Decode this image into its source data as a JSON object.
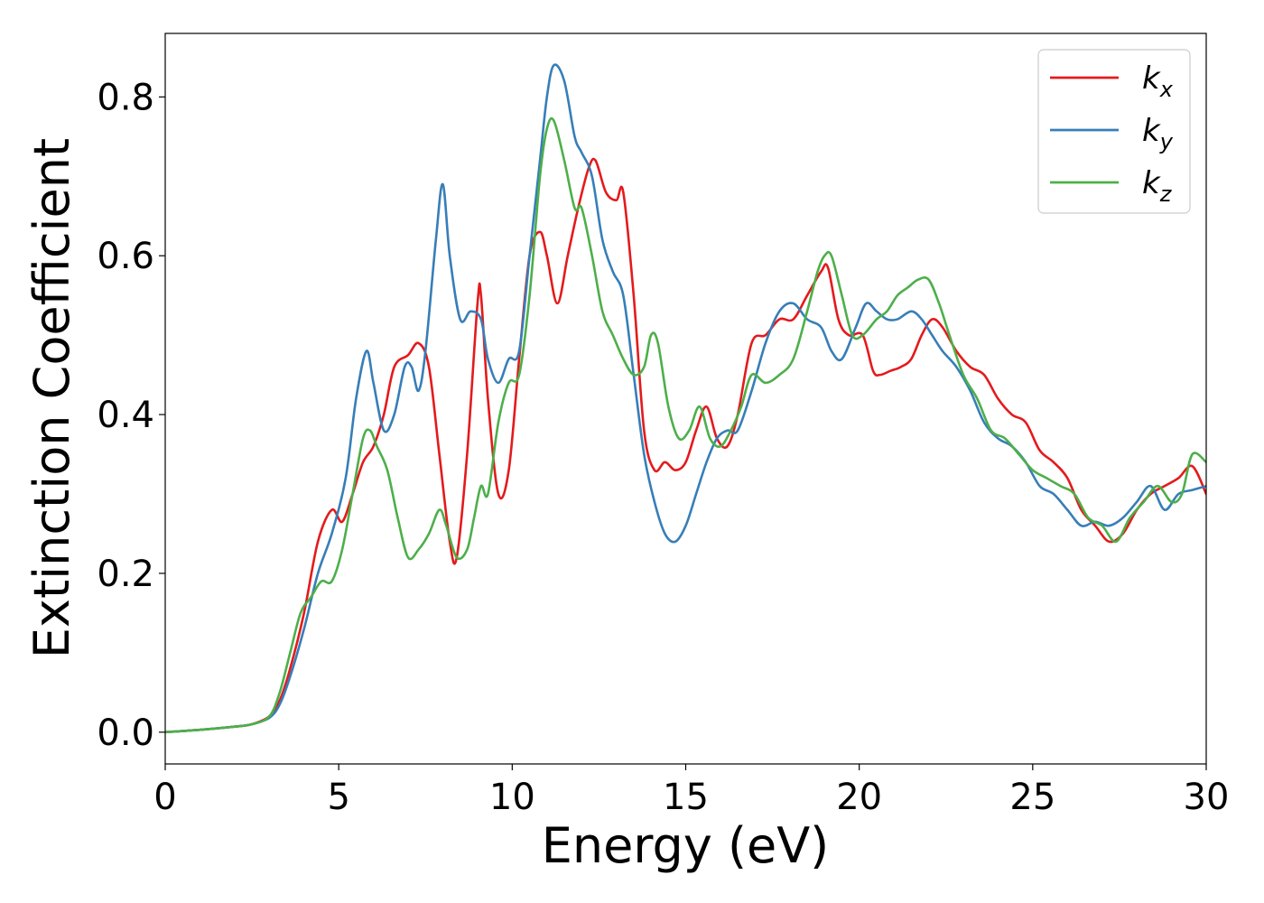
{
  "chart_data": {
    "type": "line",
    "title": "",
    "xlabel": "Energy (eV)",
    "ylabel": "Extinction Coefficient",
    "xlim": [
      0,
      30
    ],
    "ylim": [
      -0.04,
      0.88
    ],
    "xticks": [
      0,
      5,
      10,
      15,
      20,
      25,
      30
    ],
    "xtick_labels": [
      "0",
      "5",
      "10",
      "15",
      "20",
      "25",
      "30"
    ],
    "yticks": [
      0.0,
      0.2,
      0.4,
      0.6,
      0.8
    ],
    "ytick_labels": [
      "0.0",
      "0.2",
      "0.4",
      "0.6",
      "0.8"
    ],
    "grid": false,
    "legend": "top-right",
    "series": [
      {
        "name": "k_x",
        "label_base": "k",
        "label_sub": "x",
        "color": "#e41a1c",
        "x": [
          0,
          1,
          2,
          2.5,
          3,
          3.3,
          3.6,
          4,
          4.4,
          4.8,
          5.1,
          5.4,
          5.7,
          6,
          6.3,
          6.6,
          7,
          7.3,
          7.6,
          7.9,
          8.2,
          8.4,
          8.7,
          9.0,
          9.1,
          9.3,
          9.6,
          9.9,
          10.2,
          10.5,
          10.8,
          11.0,
          11.3,
          11.6,
          11.9,
          12.2,
          12.4,
          12.7,
          13.0,
          13.2,
          13.5,
          13.8,
          14.1,
          14.4,
          14.7,
          15.0,
          15.3,
          15.6,
          15.9,
          16.2,
          16.5,
          16.9,
          17.3,
          17.7,
          18.1,
          18.5,
          18.9,
          19.1,
          19.4,
          19.7,
          20.1,
          20.4,
          20.6,
          20.9,
          21.2,
          21.5,
          21.8,
          22.1,
          22.4,
          22.8,
          23.2,
          23.6,
          24.0,
          24.4,
          24.8,
          25.2,
          25.6,
          26.0,
          26.4,
          26.8,
          27.2,
          27.6,
          28.0,
          28.4,
          28.8,
          29.2,
          29.6,
          30.0
        ],
        "values": [
          0.0,
          0.003,
          0.007,
          0.01,
          0.02,
          0.04,
          0.08,
          0.15,
          0.24,
          0.28,
          0.265,
          0.3,
          0.34,
          0.36,
          0.4,
          0.46,
          0.475,
          0.49,
          0.46,
          0.35,
          0.24,
          0.22,
          0.35,
          0.54,
          0.55,
          0.42,
          0.3,
          0.33,
          0.47,
          0.6,
          0.63,
          0.6,
          0.54,
          0.6,
          0.66,
          0.71,
          0.72,
          0.68,
          0.67,
          0.68,
          0.55,
          0.38,
          0.33,
          0.34,
          0.33,
          0.34,
          0.38,
          0.41,
          0.37,
          0.36,
          0.4,
          0.49,
          0.5,
          0.52,
          0.52,
          0.55,
          0.58,
          0.585,
          0.52,
          0.5,
          0.5,
          0.455,
          0.45,
          0.455,
          0.46,
          0.47,
          0.5,
          0.52,
          0.51,
          0.48,
          0.46,
          0.45,
          0.42,
          0.4,
          0.39,
          0.355,
          0.34,
          0.32,
          0.28,
          0.26,
          0.24,
          0.25,
          0.28,
          0.3,
          0.31,
          0.32,
          0.335,
          0.3
        ]
      },
      {
        "name": "k_y",
        "label_base": "k",
        "label_sub": "y",
        "color": "#377eb8",
        "x": [
          0,
          1,
          2,
          2.5,
          3,
          3.3,
          3.6,
          4,
          4.4,
          4.8,
          5.2,
          5.5,
          5.8,
          6.0,
          6.3,
          6.6,
          6.9,
          7.1,
          7.3,
          7.5,
          7.8,
          8.0,
          8.2,
          8.5,
          8.8,
          9.1,
          9.3,
          9.6,
          9.9,
          10.2,
          10.5,
          10.8,
          11.0,
          11.2,
          11.5,
          11.8,
          12.0,
          12.3,
          12.6,
          12.9,
          13.2,
          13.5,
          13.8,
          14.1,
          14.4,
          14.7,
          15.0,
          15.3,
          15.6,
          15.9,
          16.2,
          16.5,
          16.9,
          17.3,
          17.7,
          18.1,
          18.5,
          18.9,
          19.2,
          19.5,
          19.9,
          20.2,
          20.5,
          20.8,
          21.1,
          21.5,
          21.8,
          22.1,
          22.4,
          22.8,
          23.2,
          23.6,
          24.0,
          24.4,
          24.8,
          25.2,
          25.6,
          26.0,
          26.4,
          26.8,
          27.2,
          27.6,
          28.0,
          28.4,
          28.8,
          29.2,
          29.6,
          30.0
        ],
        "values": [
          0.0,
          0.003,
          0.007,
          0.01,
          0.018,
          0.035,
          0.07,
          0.13,
          0.2,
          0.25,
          0.32,
          0.42,
          0.48,
          0.44,
          0.38,
          0.4,
          0.46,
          0.46,
          0.43,
          0.48,
          0.62,
          0.69,
          0.6,
          0.52,
          0.53,
          0.52,
          0.47,
          0.44,
          0.47,
          0.48,
          0.6,
          0.72,
          0.8,
          0.84,
          0.82,
          0.75,
          0.73,
          0.7,
          0.62,
          0.58,
          0.55,
          0.45,
          0.35,
          0.29,
          0.25,
          0.24,
          0.26,
          0.3,
          0.34,
          0.37,
          0.38,
          0.38,
          0.43,
          0.49,
          0.53,
          0.54,
          0.52,
          0.51,
          0.48,
          0.47,
          0.51,
          0.54,
          0.53,
          0.52,
          0.52,
          0.53,
          0.52,
          0.5,
          0.48,
          0.46,
          0.43,
          0.39,
          0.37,
          0.36,
          0.34,
          0.31,
          0.3,
          0.28,
          0.26,
          0.265,
          0.26,
          0.27,
          0.29,
          0.31,
          0.28,
          0.3,
          0.305,
          0.31
        ]
      },
      {
        "name": "k_z",
        "label_base": "k",
        "label_sub": "z",
        "color": "#4daf4a",
        "x": [
          0,
          1,
          2,
          2.5,
          3,
          3.3,
          3.6,
          3.9,
          4.2,
          4.5,
          4.8,
          5.1,
          5.4,
          5.7,
          5.9,
          6.1,
          6.4,
          6.7,
          7.0,
          7.3,
          7.6,
          7.9,
          8.1,
          8.4,
          8.7,
          8.9,
          9.1,
          9.3,
          9.6,
          9.9,
          10.2,
          10.5,
          10.8,
          11.0,
          11.2,
          11.5,
          11.8,
          12.0,
          12.3,
          12.6,
          12.9,
          13.2,
          13.5,
          13.8,
          14.0,
          14.2,
          14.5,
          14.8,
          15.1,
          15.4,
          15.7,
          16.0,
          16.3,
          16.6,
          16.9,
          17.3,
          17.7,
          18.1,
          18.5,
          18.8,
          19.0,
          19.2,
          19.5,
          19.8,
          20.1,
          20.5,
          20.8,
          21.1,
          21.4,
          21.7,
          22.0,
          22.3,
          22.6,
          23.0,
          23.4,
          23.8,
          24.2,
          24.6,
          25.0,
          25.4,
          25.8,
          26.2,
          26.6,
          27.0,
          27.4,
          27.8,
          28.2,
          28.6,
          29.0,
          29.3,
          29.6,
          30.0
        ],
        "values": [
          0.0,
          0.003,
          0.007,
          0.01,
          0.02,
          0.05,
          0.1,
          0.15,
          0.17,
          0.19,
          0.19,
          0.23,
          0.3,
          0.37,
          0.38,
          0.36,
          0.33,
          0.27,
          0.22,
          0.23,
          0.25,
          0.28,
          0.26,
          0.22,
          0.23,
          0.27,
          0.31,
          0.3,
          0.39,
          0.44,
          0.45,
          0.55,
          0.7,
          0.76,
          0.77,
          0.72,
          0.66,
          0.66,
          0.6,
          0.53,
          0.5,
          0.47,
          0.45,
          0.46,
          0.5,
          0.49,
          0.41,
          0.37,
          0.38,
          0.41,
          0.37,
          0.36,
          0.38,
          0.41,
          0.45,
          0.44,
          0.45,
          0.47,
          0.53,
          0.58,
          0.6,
          0.6,
          0.55,
          0.5,
          0.5,
          0.52,
          0.53,
          0.55,
          0.56,
          0.57,
          0.57,
          0.54,
          0.5,
          0.45,
          0.42,
          0.38,
          0.37,
          0.35,
          0.33,
          0.32,
          0.31,
          0.3,
          0.27,
          0.26,
          0.24,
          0.27,
          0.29,
          0.31,
          0.29,
          0.3,
          0.35,
          0.34
        ]
      }
    ]
  }
}
